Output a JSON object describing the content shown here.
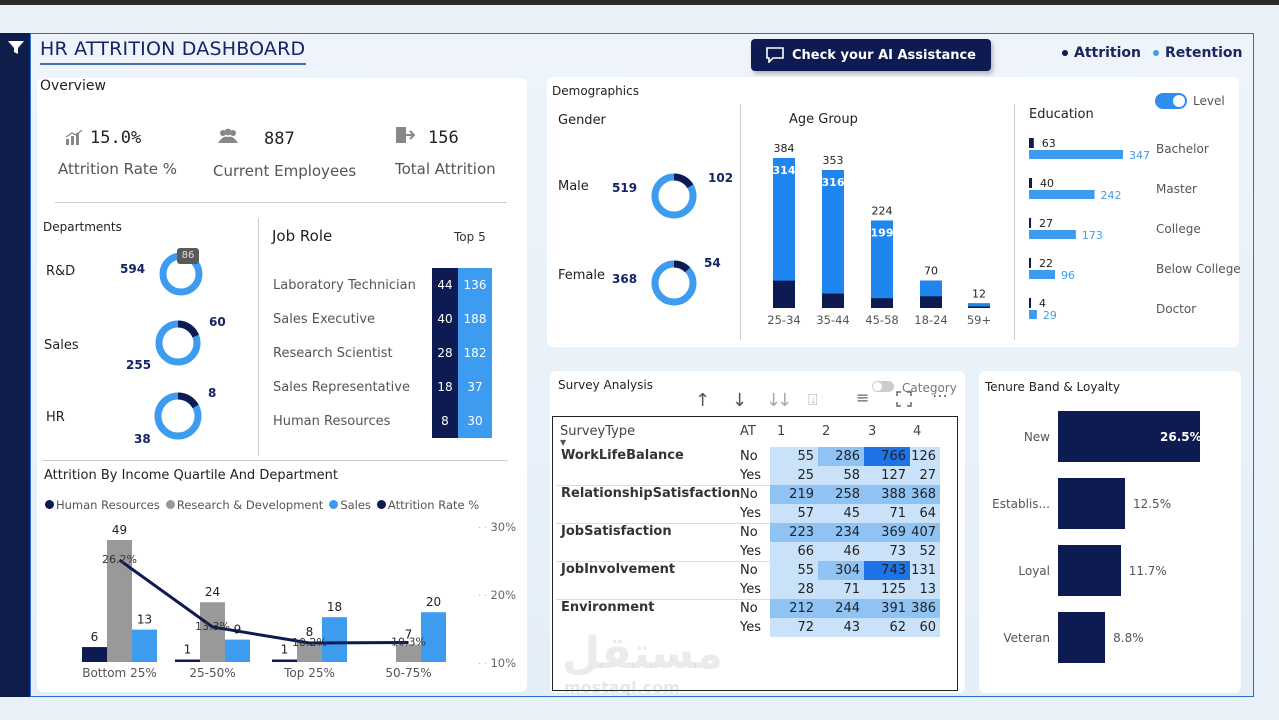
{
  "header": {
    "title": "HR ATTRITION DASHBOARD",
    "ai_button": "Check your AI Assistance",
    "legend": [
      {
        "label": "Attrition",
        "color": "#0e1a52"
      },
      {
        "label": "Retention",
        "color": "#3d9cf0"
      }
    ]
  },
  "overview": {
    "title": "Overview",
    "kpis": [
      {
        "value": "15.0%",
        "caption": "Attrition Rate %",
        "icon": "bar-chart-icon"
      },
      {
        "value": "887",
        "caption": "Current Employees",
        "icon": "people-icon"
      },
      {
        "value": "156",
        "caption": "Total Attrition",
        "icon": "exit-icon"
      }
    ]
  },
  "departments": {
    "title": "Departments",
    "items": [
      {
        "name": "R&D",
        "retention": "594",
        "attrition": "86",
        "attrition_fraction": 0.126
      },
      {
        "name": "Sales",
        "retention": "255",
        "attrition": "60",
        "attrition_fraction": 0.19
      },
      {
        "name": "HR",
        "retention": "38",
        "attrition": "8",
        "attrition_fraction": 0.17
      }
    ]
  },
  "job_role": {
    "title": "Job Role",
    "top_label": "Top 5",
    "rows": [
      {
        "role": "Laboratory Technician",
        "attrition": "44",
        "retention": "136"
      },
      {
        "role": "Sales Executive",
        "attrition": "40",
        "retention": "188"
      },
      {
        "role": "Research Scientist",
        "attrition": "28",
        "retention": "182"
      },
      {
        "role": "Sales Representative",
        "attrition": "18",
        "retention": "37"
      },
      {
        "role": "Human Resources",
        "attrition": "8",
        "retention": "30"
      }
    ]
  },
  "demographics": {
    "title": "Demographics",
    "gender": {
      "title": "Gender",
      "items": [
        {
          "name": "Male",
          "retention": "519",
          "attrition": "102",
          "attrition_fraction": 0.164
        },
        {
          "name": "Female",
          "retention": "368",
          "attrition": "54",
          "attrition_fraction": 0.128
        }
      ]
    },
    "age_group": {
      "title": "Age Group",
      "groups": [
        {
          "label": "25-34",
          "total": "384",
          "retention": "314"
        },
        {
          "label": "35-44",
          "total": "353",
          "retention": "316"
        },
        {
          "label": "45-58",
          "total": "224",
          "retention": "199"
        },
        {
          "label": "18-24",
          "total": "70",
          "retention": ""
        },
        {
          "label": "59+",
          "total": "12",
          "retention": ""
        }
      ]
    },
    "education": {
      "title": "Education",
      "toggle_label": "Level",
      "rows": [
        {
          "level": "Bachelor",
          "attrition": "63",
          "retention": "347"
        },
        {
          "level": "Master",
          "attrition": "40",
          "retention": "242"
        },
        {
          "level": "College",
          "attrition": "27",
          "retention": "173"
        },
        {
          "level": "Below College",
          "attrition": "22",
          "retention": "96"
        },
        {
          "level": "Doctor",
          "attrition": "4",
          "retention": "29"
        }
      ]
    }
  },
  "income": {
    "title": "Attrition By Income Quartile And Department",
    "legend": [
      {
        "label": "Human Resources",
        "color": "#0e1a52"
      },
      {
        "label": "Research & Development",
        "color": "#999999"
      },
      {
        "label": "Sales",
        "color": "#3d9cf0"
      },
      {
        "label": "Attrition Rate %",
        "color": "#0e1a52"
      }
    ],
    "y_ticks": [
      "30%",
      "20%",
      "10%"
    ]
  },
  "survey": {
    "title": "Survey Analysis",
    "category_label": "Category",
    "headers": [
      "SurveyType",
      "AT",
      "1",
      "2",
      "3",
      "4"
    ],
    "rows": [
      {
        "type": "WorkLifeBalance",
        "no": [
          "55",
          "286",
          "766",
          "126"
        ],
        "yes": [
          "25",
          "58",
          "127",
          "27"
        ]
      },
      {
        "type": "RelationshipSatisfaction",
        "no": [
          "219",
          "258",
          "388",
          "368"
        ],
        "yes": [
          "57",
          "45",
          "71",
          "64"
        ]
      },
      {
        "type": "JobSatisfaction",
        "no": [
          "223",
          "234",
          "369",
          "407"
        ],
        "yes": [
          "66",
          "46",
          "73",
          "52"
        ]
      },
      {
        "type": "JobInvolvement",
        "no": [
          "55",
          "304",
          "743",
          "131"
        ],
        "yes": [
          "28",
          "71",
          "125",
          "13"
        ]
      },
      {
        "type": "Environment",
        "no": [
          "212",
          "244",
          "391",
          "386"
        ],
        "yes": [
          "72",
          "43",
          "62",
          "60"
        ]
      }
    ],
    "no_label": "No",
    "yes_label": "Yes"
  },
  "tenure": {
    "title": "Tenure Band & Loyalty",
    "bars": [
      {
        "label": "New",
        "value": "26.5%"
      },
      {
        "label": "Establis...",
        "value": "12.5%"
      },
      {
        "label": "Loyal",
        "value": "11.7%"
      },
      {
        "label": "Veteran",
        "value": "8.8%"
      }
    ]
  },
  "chart_data": [
    {
      "type": "bar",
      "title": "Attrition By Income Quartile And Department",
      "categories": [
        "Bottom 25%",
        "25-50%",
        "Top 25%",
        "50-75%"
      ],
      "series": [
        {
          "name": "Human Resources",
          "values": [
            6,
            1,
            1,
            0
          ]
        },
        {
          "name": "Research & Development",
          "values": [
            49,
            24,
            8,
            7
          ]
        },
        {
          "name": "Sales",
          "values": [
            13,
            9,
            18,
            20
          ]
        },
        {
          "name": "Attrition Rate %",
          "values": [
            26.2,
            13.3,
            10.2,
            10.3
          ],
          "axis": "secondary",
          "labels": [
            "26.2%",
            "13.3%",
            "10.2%",
            "10.3%"
          ]
        }
      ],
      "ylim": [
        0,
        55
      ],
      "y2lim": [
        5,
        32
      ]
    },
    {
      "type": "bar",
      "title": "Age Group",
      "categories": [
        "25-34",
        "35-44",
        "45-58",
        "18-24",
        "59+"
      ],
      "series": [
        {
          "name": "Total",
          "values": [
            384,
            353,
            224,
            70,
            12
          ]
        },
        {
          "name": "Retention",
          "values": [
            314,
            316,
            199,
            40,
            8
          ]
        }
      ],
      "ylim": [
        0,
        400
      ]
    },
    {
      "type": "bar",
      "title": "Education",
      "categories": [
        "Bachelor",
        "Master",
        "College",
        "Below College",
        "Doctor"
      ],
      "series": [
        {
          "name": "Attrition",
          "values": [
            63,
            40,
            27,
            22,
            4
          ]
        },
        {
          "name": "Retention",
          "values": [
            347,
            242,
            173,
            96,
            29
          ]
        }
      ]
    },
    {
      "type": "bar",
      "title": "Tenure Band & Loyalty",
      "categories": [
        "New",
        "Establis...",
        "Loyal",
        "Veteran"
      ],
      "values": [
        26.5,
        12.5,
        11.7,
        8.8
      ]
    }
  ]
}
